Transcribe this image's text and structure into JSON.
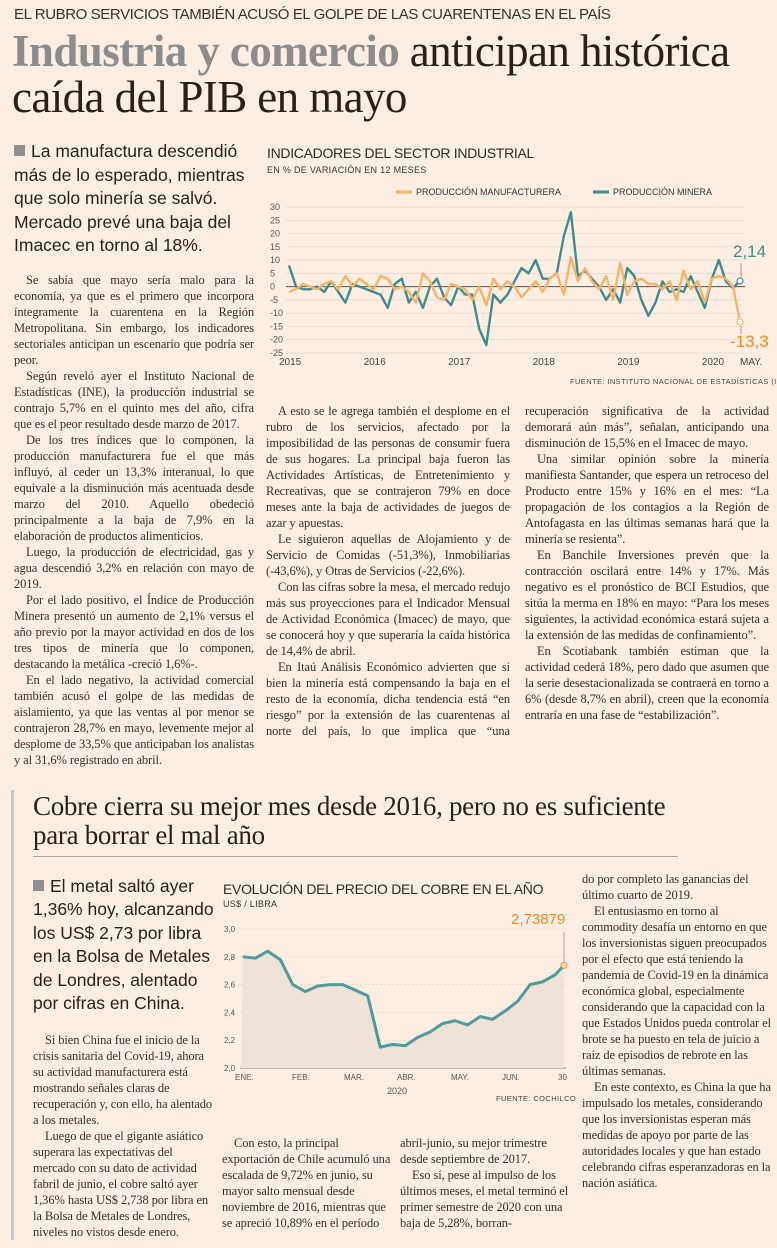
{
  "article1": {
    "kicker": "EL RUBRO SERVICIOS TAMBIÉN ACUSÓ EL GOLPE DE LAS CUARENTENAS EN EL PAÍS",
    "headline_strong": "Industria y comercio",
    "headline_rest": " anticipan histórica caída del PIB en mayo",
    "deck": "La manufactura descendió más de lo esperado, mientras que solo minería se salvó. Mercado prevé una baja del Imacec en torno al 18%.",
    "col1": [
      "Se sabía que mayo sería malo para la economía, ya que es el primero que incorpora íntegramente la cuarentena en la Región Metropolitana. Sin embargo, los indicadores sectoriales anticipan un escenario que podría ser peor.",
      "Según reveló ayer el Instituto Nacional de Estadísticas (INE), la producción industrial se contrajo 5,7% en el quinto mes del año, cifra que es el peor resultado desde marzo de 2017.",
      "De los tres índices que lo componen, la producción manufacturera fue el que más influyó, al ceder un 13,3% interanual, lo que equivale a la disminución más acentuada desde marzo del 2010. Aquello obedeció principalmente a la baja de 7,9% en la elaboración de productos alimenticios.",
      "Luego, la producción de electricidad, gas y agua descendió 3,2% en relación con mayo de 2019.",
      "Por el lado positivo, el Índice de Producción Minera presentó un aumento de 2,1% versus el año previo por la mayor actividad en dos de los tres tipos de minería que lo componen, destacando la metálica -creció 1,6%-.",
      "En el lado negativo, la actividad comercial también acusó el golpe de las medidas de aislamiento, ya que las ventas al por menor se contrajeron 28,7% en mayo, levemente mejor al desplome de 33,5% que anticipaban los analistas y al 31,6% registrado en abril."
    ],
    "col2": [
      "A esto se le agrega también el desplome en el rubro de los servicios, afectado por la imposibilidad de las personas de consumir fuera de sus hogares. La principal baja fueron las Actividades Artísticas, de Entretenimiento y Recreativas, que se contrajeron 79% en doce meses ante la baja de actividades de juegos de azar y apuestas.",
      "Le siguieron aquellas de Alojamiento y de Servicio de Comidas (-51,3%), Inmobiliarias (-43,6%), y Otras de Servicios (-22,6%).",
      "Con las cifras sobre la mesa, el mercado redujo más sus proyecciones para el Indicador Mensual de Actividad Económica (Imacec) de mayo, que se conocerá hoy y que superaría la caída histórica de 14,4% de abril.",
      "En Itaú Análisis Económico advierten que si bien la minería está compensando la baja en el resto de la economía, dicha tendencia está “en riesgo” por la extensión de las cuarentenas al norte del país, lo que implica que “una recuperación significativa de la actividad demorará aún más”, señalan, anticipando una disminución de 15,5% en el Imacec de mayo.",
      "Una similar opinión sobre la minería manifiesta Santander, que espera un retroceso del Producto entre 15% y 16% en el mes: “La propagación de los contagios a la Región de Antofagasta en las últimas semanas hará que la minería se resienta”.",
      "En Banchile Inversiones prevén que la contracción oscilará entre 14% y 17%. Más negativo es el pronóstico de BCI Estudios, que sitúa la merma en 18% en mayo: “Para los meses siguientes, la actividad económica estará sujeta a la extensión de las medidas de confinamiento”.",
      "En Scotiabank también estiman que la actividad cederá 18%, pero dado que asumen que la serie desestacionalizada se contraerá en torno a 6% (desde 8,7% en abril), creen que la economía entraría en una fase de “estabilización”."
    ]
  },
  "article2": {
    "headline": "Cobre cierra su mejor mes desde 2016, pero no es suficiente para borrar el mal año",
    "deck": "El metal saltó ayer 1,36% hoy, alcanzando los US$ 2,73 por libra en la Bolsa de Metales de Londres, alentado por cifras en China.",
    "col1": [
      "Si bien China fue el inicio de la crisis sanitaria del Covid-19, ahora su actividad manufacturera está mostrando señales claras de recuperación y, con ello, ha alentado a los metales.",
      "Luego de que el gigante asiático superara las expectativas del mercado con su dato de actividad fabril de junio, el cobre saltó ayer 1,36% hasta US$ 2,738 por libra en la Bolsa de Metales de Londres, niveles no vistos desde enero."
    ],
    "col2": [
      "Con esto, la principal exportación de Chile acumuló una escalada de 9,72% en junio, su mayor salto mensual desde noviembre de 2016, mientras que se apreció 10,89% en el período"
    ],
    "col3": [
      "abril-junio, su mejor trimestre desde septiembre de 2017.",
      "Eso sí, pese al impulso de los últimos meses, el metal terminó el primer semestre de 2020 con una baja de 5,28%, borran-"
    ],
    "col4_cont": "do por completo las ganancias del último cuarto de 2019.",
    "col4": [
      "El entusiasmo en torno al commodity  desafía un entorno en que los inversionistas siguen preocupados por el efecto que está teniendo la pandemia de Covid-19 en la dinámica económica global, especialmente considerando que la capacidad con la que Estados Unidos pueda controlar el brote se ha puesto en tela de juicio a raíz de episodios de rebrote en las últimas semanas.",
      "En este contexto, es China la que ha impulsado los metales, considerando que los inversionistas esperan más medidas de apoyo por parte de las autoridades locales y que han estado celebrando cifras esperanzadoras en la nación asiática."
    ]
  },
  "colors": {
    "background": "#fdeee3",
    "manufactura": "#f5b46a",
    "minera": "#3f8c8c",
    "highlight_orange": "#f08a1c",
    "copper_line": "#4f9a9a",
    "copper_fill": "#efe2d8"
  },
  "chart_data": [
    {
      "type": "line",
      "title": "INDICADORES DEL SECTOR INDUSTRIAL",
      "subtitle": "EN % DE VARIACIÓN EN 12 MESES",
      "source": "FUENTE: INSTITUTO NACIONAL DE ESTADÍSTICAS (INE)",
      "x_start": "2015-01",
      "x_end": "2020-05",
      "x_ticks": [
        "2015",
        "2016",
        "2017",
        "2018",
        "2019",
        "2020",
        "MAY."
      ],
      "y_ticks": [
        "30",
        "25",
        "20",
        "15",
        "10",
        "5",
        "0",
        "-5",
        "-10",
        "-15",
        "-20",
        "-25"
      ],
      "ylim": [
        -25,
        30
      ],
      "grid": true,
      "legend_placement": "top",
      "series": [
        {
          "name": "PRODUCCIÓN MANUFACTURERA",
          "end_label": "-13,3",
          "values": [
            -2,
            -1,
            1,
            0,
            -1,
            1,
            2,
            -1,
            4,
            0,
            3,
            1,
            -1,
            4,
            3,
            -1,
            0,
            -2,
            -6,
            5,
            2,
            -4,
            -5,
            1,
            0,
            -1,
            -5,
            0,
            -7,
            3,
            -1,
            2,
            0,
            -4,
            -1,
            2,
            -2,
            3,
            5,
            -3,
            11,
            2,
            7,
            2,
            -1,
            4,
            -5,
            9,
            -3,
            2,
            3,
            1,
            1,
            -1,
            2,
            -5,
            6,
            -1,
            2,
            -6,
            3,
            4,
            3,
            0,
            -13.3
          ]
        },
        {
          "name": "PRODUCCIÓN MINERA",
          "end_label": "2,14",
          "values": [
            8,
            0,
            -1,
            -1,
            0,
            -2,
            2,
            -2,
            -6,
            1,
            0,
            -1,
            -2,
            -3,
            -8,
            1,
            3,
            -6,
            -2,
            -8,
            0,
            3,
            -4,
            -7,
            0,
            -3,
            -3,
            -16,
            -22,
            -3,
            -6,
            -3,
            2,
            7,
            5,
            10,
            3,
            3,
            5,
            19,
            28,
            4,
            6,
            3,
            0,
            -5,
            -1,
            -6,
            7,
            4,
            -5,
            -11,
            -6,
            2,
            -2,
            -1,
            -2,
            4,
            -2,
            -8,
            3,
            10,
            2,
            -0.5,
            2.14
          ]
        }
      ]
    },
    {
      "type": "area",
      "title": "EVOLUCIÓN DEL PRECIO DEL COBRE EN EL AÑO",
      "subtitle": "US$ / LIBRA",
      "source": "FUENTE: COCHILCO",
      "x_ticks": [
        "ENE.",
        "FEB.",
        "MAR.",
        "ABR.",
        "MAY.",
        "JUN.",
        "30"
      ],
      "x_year": "2020",
      "y_ticks": [
        "3,0",
        "2,8",
        "2,6",
        "2,4",
        "2,2",
        "2,0"
      ],
      "ylim": [
        2.0,
        3.0
      ],
      "grid": true,
      "end_label": "2,73879",
      "dates": [
        "2020-01-02",
        "2020-01-09",
        "2020-01-16",
        "2020-01-23",
        "2020-01-30",
        "2020-02-06",
        "2020-02-13",
        "2020-02-20",
        "2020-02-27",
        "2020-03-05",
        "2020-03-12",
        "2020-03-19",
        "2020-03-26",
        "2020-04-02",
        "2020-04-09",
        "2020-04-16",
        "2020-04-23",
        "2020-04-30",
        "2020-05-07",
        "2020-05-14",
        "2020-05-21",
        "2020-05-28",
        "2020-06-04",
        "2020-06-11",
        "2020-06-18",
        "2020-06-25",
        "2020-06-30"
      ],
      "values": [
        2.8,
        2.79,
        2.84,
        2.78,
        2.6,
        2.55,
        2.59,
        2.6,
        2.6,
        2.56,
        2.52,
        2.15,
        2.17,
        2.16,
        2.22,
        2.26,
        2.32,
        2.34,
        2.31,
        2.37,
        2.35,
        2.41,
        2.48,
        2.6,
        2.62,
        2.67,
        2.73879
      ]
    }
  ]
}
